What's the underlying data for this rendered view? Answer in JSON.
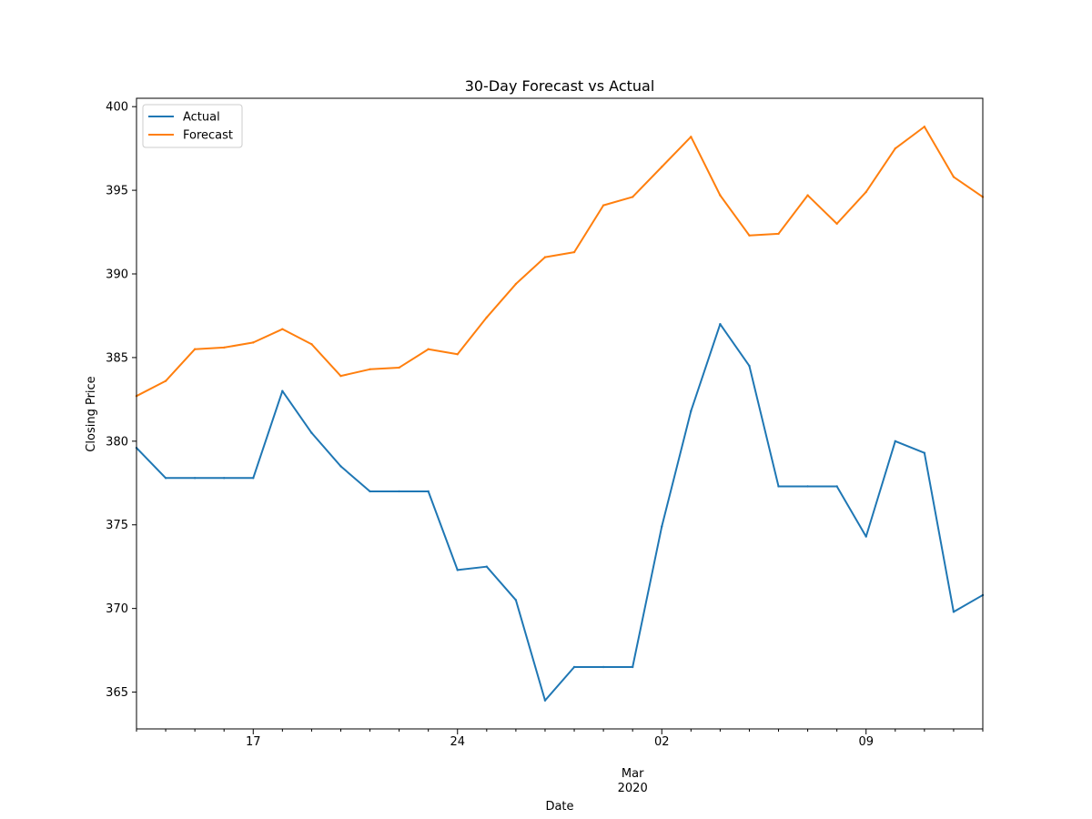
{
  "chart_data": {
    "type": "line",
    "title": "30-Day Forecast vs Actual",
    "xlabel": "Date",
    "ylabel": "Closing Price",
    "x": [
      "2020-02-13",
      "2020-02-14",
      "2020-02-15",
      "2020-02-16",
      "2020-02-17",
      "2020-02-18",
      "2020-02-19",
      "2020-02-20",
      "2020-02-21",
      "2020-02-22",
      "2020-02-23",
      "2020-02-24",
      "2020-02-25",
      "2020-02-26",
      "2020-02-27",
      "2020-02-28",
      "2020-02-29",
      "2020-03-01",
      "2020-03-02",
      "2020-03-03",
      "2020-03-04",
      "2020-03-05",
      "2020-03-06",
      "2020-03-07",
      "2020-03-08",
      "2020-03-09",
      "2020-03-10",
      "2020-03-11",
      "2020-03-12",
      "2020-03-13"
    ],
    "xlim": [
      "2020-02-13",
      "2020-03-13"
    ],
    "ylim": [
      362.8,
      400.5
    ],
    "yticks": [
      365,
      370,
      375,
      380,
      385,
      390,
      395,
      400
    ],
    "xticks_major": [
      {
        "date": "2020-02-17",
        "label": "17"
      },
      {
        "date": "2020-02-24",
        "label": "24"
      },
      {
        "date": "2020-03-02",
        "label": "02"
      },
      {
        "date": "2020-03-09",
        "label": "09"
      }
    ],
    "month_label": {
      "date": "2020-03-01",
      "line1": "Mar",
      "line2": "2020"
    },
    "legend_position": "top-left",
    "grid": false,
    "series": [
      {
        "name": "Actual",
        "color": "#1f77b4",
        "values": [
          379.6,
          377.8,
          377.8,
          377.8,
          377.8,
          383.0,
          380.5,
          378.5,
          377.0,
          377.0,
          377.0,
          372.3,
          372.5,
          370.5,
          364.5,
          366.5,
          366.5,
          366.5,
          374.9,
          381.8,
          387.0,
          384.5,
          377.3,
          377.3,
          377.3,
          374.3,
          380.0,
          379.3,
          369.8,
          370.8
        ]
      },
      {
        "name": "Forecast",
        "color": "#ff7f0e",
        "values": [
          382.7,
          383.6,
          385.5,
          385.6,
          385.9,
          386.7,
          385.8,
          383.9,
          384.3,
          384.4,
          385.5,
          385.2,
          387.4,
          389.4,
          391.0,
          391.3,
          394.1,
          394.6,
          396.4,
          398.2,
          394.7,
          392.3,
          392.4,
          394.7,
          393.0,
          394.9,
          397.5,
          398.8,
          395.8,
          394.6
        ]
      }
    ]
  }
}
